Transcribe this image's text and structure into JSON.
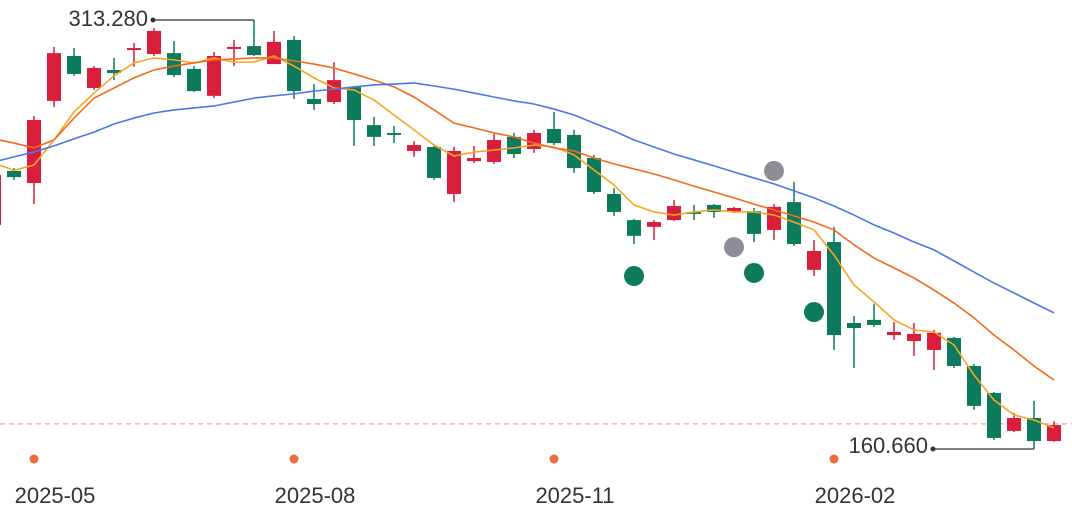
{
  "chart_data": {
    "type": "candlestick",
    "categories": [
      null,
      null,
      "2025-05",
      null,
      null,
      null,
      null,
      null,
      null,
      null,
      null,
      null,
      null,
      null,
      null,
      "2025-08",
      null,
      null,
      null,
      null,
      null,
      null,
      null,
      null,
      null,
      null,
      null,
      null,
      "2025-11",
      null,
      null,
      null,
      null,
      null,
      null,
      null,
      null,
      null,
      null,
      null,
      null,
      null,
      "2026-02",
      null,
      null,
      null,
      null,
      null,
      null,
      null,
      null,
      null,
      null,
      null
    ],
    "open": [
      240.4,
      259.6,
      255.3,
      284.5,
      300.5,
      289.1,
      295.5,
      302.6,
      301.2,
      301.5,
      295.9,
      286.3,
      303.0,
      304.0,
      297.6,
      306.2,
      285.2,
      284.1,
      289.5,
      275.9,
      273.1,
      266.7,
      268.1,
      251.4,
      263.1,
      262.8,
      271.7,
      267.4,
      274.5,
      272.4,
      264.2,
      251.4,
      242.1,
      239.7,
      242.1,
      245.0,
      247.5,
      245.0,
      245.3,
      238.6,
      248.5,
      224.4,
      234.3,
      205.5,
      206.6,
      201.2,
      199.1,
      195.9,
      200.2,
      190.2,
      180.6,
      167.1,
      171.7,
      163.5
    ],
    "high": [
      258.9,
      260.6,
      279.1,
      303.7,
      303.3,
      296.9,
      299.8,
      305.1,
      310.4,
      305.8,
      296.9,
      301.9,
      306.2,
      313.28,
      309.4,
      307.6,
      290.5,
      298.3,
      289.8,
      278.8,
      275.6,
      270.2,
      268.8,
      268.1,
      268.5,
      272.7,
      273.1,
      274.2,
      280.6,
      274.2,
      265.3,
      253.5,
      242.5,
      242.1,
      249.3,
      247.5,
      247.8,
      246.8,
      246.4,
      247.8,
      255.7,
      235.0,
      239.7,
      208.0,
      212.3,
      205.9,
      205.5,
      203.0,
      200.5,
      190.9,
      181.0,
      173.5,
      177.8,
      170.6
    ],
    "low": [
      240.4,
      256.4,
      247.8,
      282.3,
      293.4,
      288.4,
      291.9,
      296.6,
      300.5,
      293.0,
      287.7,
      285.5,
      296.9,
      300.5,
      297.6,
      285.2,
      281.3,
      283.4,
      268.5,
      268.5,
      269.5,
      264.6,
      256.4,
      248.5,
      262.4,
      262.1,
      264.2,
      266.0,
      268.8,
      258.9,
      251.4,
      243.6,
      233.6,
      235.0,
      241.8,
      242.1,
      242.9,
      244.6,
      234.3,
      235.0,
      232.9,
      222.2,
      195.9,
      189.5,
      204.1,
      199.5,
      193.8,
      188.8,
      189.5,
      174.6,
      163.9,
      166.7,
      160.66,
      163.2
    ],
    "close": [
      258.2,
      257.4,
      277.7,
      301.5,
      294.1,
      296.2,
      294.4,
      303.3,
      309.4,
      293.7,
      288.0,
      300.5,
      303.7,
      300.8,
      305.5,
      288.0,
      283.4,
      291.9,
      277.7,
      271.7,
      272.4,
      268.8,
      257.1,
      266.7,
      264.2,
      270.6,
      265.6,
      273.1,
      269.5,
      260.6,
      252.1,
      245.0,
      236.5,
      241.4,
      247.1,
      244.3,
      245.0,
      246.4,
      237.2,
      246.8,
      233.6,
      231.1,
      201.2,
      203.7,
      204.8,
      202.3,
      201.6,
      202.0,
      190.2,
      176.0,
      164.6,
      171.7,
      163.5,
      169.2
    ],
    "up_color": "#d81e3b",
    "down_color": "#0b7a5d",
    "series": [
      {
        "color": "#f5a623",
        "values": [
          262.4,
          259.8,
          261.7,
          270.6,
          280.6,
          287.3,
          293.4,
          298.0,
          299.8,
          299.1,
          298.0,
          299.8,
          298.3,
          298.3,
          300.5,
          296.9,
          292.7,
          289.1,
          288.4,
          284.8,
          279.5,
          274.2,
          268.8,
          264.9,
          266.3,
          267.0,
          267.8,
          268.8,
          268.1,
          265.3,
          259.9,
          254.6,
          247.5,
          245.0,
          243.9,
          245.0,
          245.7,
          245.0,
          245.0,
          243.9,
          241.4,
          238.6,
          229.7,
          219.0,
          213.0,
          206.6,
          203.0,
          202.3,
          197.7,
          187.0,
          178.1,
          172.8,
          171.0,
          168.2
        ]
      },
      {
        "color": "#f26b1d",
        "values": [
          271.0,
          269.5,
          267.8,
          270.6,
          278.4,
          285.5,
          289.1,
          292.7,
          295.5,
          296.9,
          298.0,
          299.1,
          299.4,
          299.8,
          299.8,
          298.7,
          297.6,
          296.2,
          294.1,
          291.9,
          289.5,
          285.9,
          281.3,
          276.6,
          274.9,
          273.1,
          271.7,
          269.5,
          267.8,
          266.7,
          264.2,
          262.1,
          260.3,
          258.5,
          256.4,
          254.2,
          252.1,
          250.0,
          247.8,
          245.7,
          243.6,
          241.4,
          238.6,
          233.3,
          228.6,
          225.1,
          221.5,
          217.2,
          212.6,
          207.3,
          201.2,
          195.9,
          190.2,
          185.2
        ]
      },
      {
        "color": "#4a78e8",
        "values": [
          262.8,
          264.6,
          266.3,
          268.5,
          271.0,
          273.4,
          276.3,
          278.4,
          280.2,
          281.3,
          282.0,
          282.7,
          284.1,
          285.5,
          286.3,
          287.0,
          288.0,
          288.7,
          289.5,
          290.2,
          290.5,
          290.9,
          289.8,
          288.7,
          287.3,
          285.9,
          284.5,
          283.4,
          281.6,
          279.5,
          276.6,
          273.8,
          270.6,
          268.1,
          265.6,
          263.5,
          261.4,
          259.2,
          257.1,
          255.0,
          252.5,
          250.0,
          247.1,
          243.9,
          240.4,
          237.5,
          234.3,
          231.5,
          227.6,
          223.6,
          219.7,
          216.2,
          212.6,
          209.1
        ]
      }
    ],
    "signals": [
      {
        "color": "#8e8c99",
        "values": [
          null,
          null,
          null,
          null,
          null,
          null,
          null,
          null,
          null,
          null,
          null,
          null,
          null,
          null,
          null,
          null,
          null,
          null,
          null,
          null,
          null,
          null,
          null,
          null,
          null,
          null,
          null,
          null,
          null,
          null,
          null,
          null,
          null,
          null,
          null,
          null,
          null,
          232.5,
          null,
          259.6,
          null,
          null,
          null,
          null,
          null,
          null,
          null,
          null,
          null,
          null,
          null,
          null,
          null,
          null
        ]
      },
      {
        "color": "#0b7a5d",
        "values": [
          null,
          null,
          null,
          null,
          null,
          null,
          null,
          null,
          null,
          null,
          null,
          null,
          null,
          null,
          null,
          null,
          null,
          null,
          null,
          null,
          null,
          null,
          null,
          null,
          null,
          null,
          null,
          null,
          null,
          null,
          null,
          null,
          222.2,
          null,
          null,
          null,
          null,
          null,
          223.3,
          null,
          null,
          209.4,
          null,
          null,
          null,
          null,
          null,
          null,
          null,
          null,
          null,
          null,
          null,
          null
        ]
      }
    ],
    "reference_line": {
      "value": 169.6,
      "color": "#f4a0a0"
    },
    "annotations": [
      {
        "value": 313.28,
        "label": "313.280"
      },
      {
        "value": 160.66,
        "label": "160.660"
      }
    ],
    "date_dot_color": "#f26b3a",
    "ylim": [
      153.2,
      320.4
    ]
  }
}
